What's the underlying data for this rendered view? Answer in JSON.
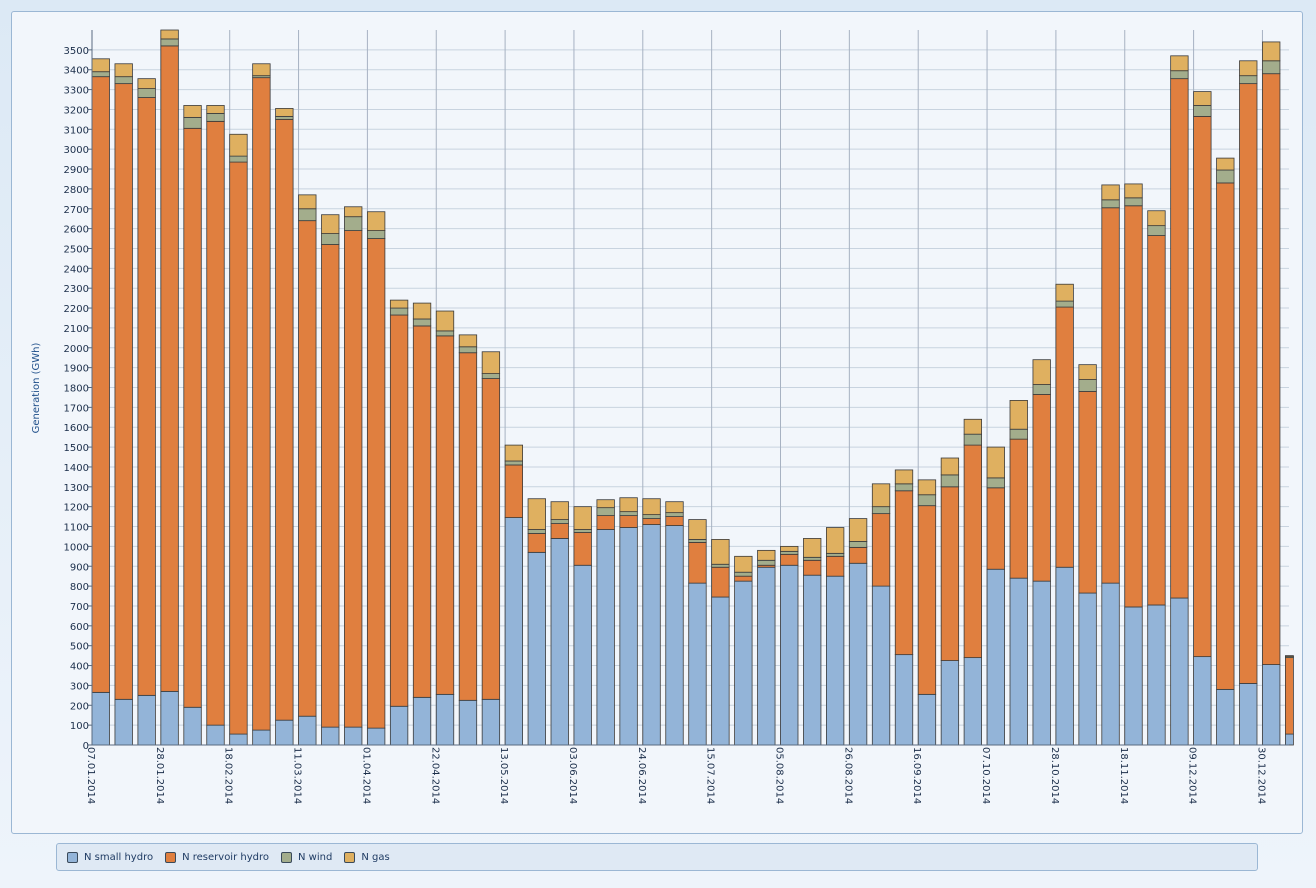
{
  "chart_data": {
    "type": "bar",
    "stacked": true,
    "ylabel": "Generation (GWh)",
    "ylim": [
      0,
      3600
    ],
    "ytick_step": 100,
    "ytick_max": 3500,
    "grid": true,
    "legend_position": "bottom",
    "x_tick_labels": [
      "07.01.2014",
      "28.01.2014",
      "18.02.2014",
      "11.03.2014",
      "01.04.2014",
      "22.04.2014",
      "13.05.2014",
      "03.06.2014",
      "24.06.2014",
      "15.07.2014",
      "05.08.2014",
      "26.08.2014",
      "16.09.2014",
      "07.10.2014",
      "28.10.2014",
      "18.11.2014",
      "09.12.2014",
      "30.12.2014"
    ],
    "x_tick_every": 3,
    "series": [
      {
        "name": "N small hydro",
        "color": "#93b4d8",
        "values": [
          265,
          230,
          250,
          270,
          190,
          100,
          55,
          75,
          125,
          145,
          90,
          90,
          85,
          195,
          240,
          255,
          225,
          230,
          1145,
          970,
          1040,
          905,
          1085,
          1095,
          1110,
          1105,
          815,
          745,
          825,
          895,
          905,
          855,
          850,
          915,
          800,
          455,
          255,
          425,
          440,
          885,
          840,
          825,
          895,
          765,
          815,
          695,
          705,
          740,
          445,
          280,
          310,
          405,
          55
        ]
      },
      {
        "name": "N reservoir hydro",
        "color": "#e07f3f",
        "values": [
          3100,
          3100,
          3010,
          3250,
          2915,
          3040,
          2880,
          3285,
          3025,
          2495,
          2430,
          2500,
          2465,
          1970,
          1870,
          1805,
          1750,
          1615,
          265,
          95,
          75,
          165,
          70,
          60,
          30,
          45,
          205,
          150,
          25,
          10,
          55,
          75,
          100,
          80,
          365,
          825,
          950,
          875,
          1070,
          410,
          700,
          940,
          1310,
          1015,
          1890,
          2020,
          1860,
          2615,
          2720,
          2550,
          3020,
          2975,
          385
        ]
      },
      {
        "name": "N wind",
        "color": "#a3ad8c",
        "values": [
          25,
          35,
          45,
          35,
          55,
          40,
          30,
          10,
          15,
          60,
          55,
          70,
          40,
          35,
          35,
          25,
          30,
          25,
          20,
          20,
          20,
          15,
          40,
          20,
          20,
          20,
          15,
          15,
          20,
          25,
          15,
          15,
          15,
          30,
          35,
          35,
          55,
          60,
          55,
          50,
          50,
          50,
          30,
          60,
          40,
          40,
          50,
          40,
          55,
          65,
          40,
          65,
          5
        ]
      },
      {
        "name": "N gas",
        "color": "#dfb060",
        "values": [
          65,
          65,
          50,
          45,
          60,
          40,
          110,
          60,
          40,
          70,
          95,
          50,
          95,
          40,
          80,
          100,
          60,
          110,
          80,
          155,
          90,
          115,
          40,
          70,
          80,
          55,
          100,
          125,
          80,
          50,
          25,
          95,
          130,
          115,
          115,
          70,
          75,
          85,
          75,
          155,
          145,
          125,
          85,
          75,
          75,
          70,
          75,
          75,
          70,
          60,
          75,
          95,
          5
        ]
      }
    ]
  },
  "legend": {
    "items": [
      {
        "label": "N small hydro",
        "color": "#93b4d8"
      },
      {
        "label": "N reservoir hydro",
        "color": "#e07f3f"
      },
      {
        "label": "N wind",
        "color": "#a3ad8c"
      },
      {
        "label": "N gas",
        "color": "#dfb060"
      }
    ]
  }
}
